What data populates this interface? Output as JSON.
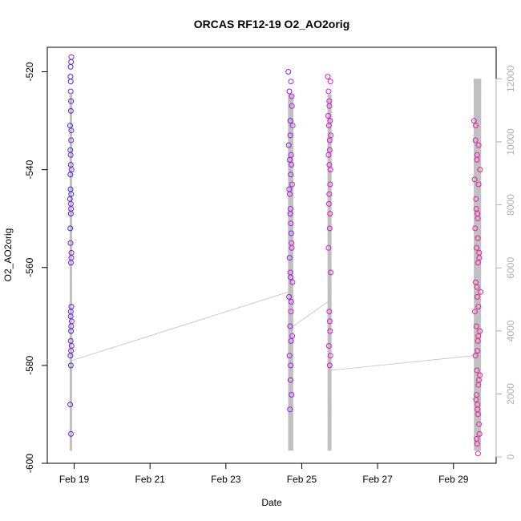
{
  "chart_data": {
    "type": "scatter",
    "title": "ORCAS RF12-19 O2_AO2orig",
    "xlabel": "Date",
    "ylabel": "O2_AO2orig",
    "ylim": [
      -600,
      -515
    ],
    "y_ticks": [
      "-520",
      "-540",
      "-560",
      "-580",
      "-600"
    ],
    "x_ticks": [
      "Feb 19",
      "Feb 21",
      "Feb 23",
      "Feb 25",
      "Feb 27",
      "Feb 29"
    ],
    "x_tick_dates": [
      "2016-02-19",
      "2016-02-21",
      "2016-02-23",
      "2016-02-25",
      "2016-02-27",
      "2016-02-29"
    ],
    "xlim": [
      "2016-02-18T07:00",
      "2016-03-01T03:00"
    ],
    "y2lim": [
      -200,
      13000
    ],
    "y2_ticks": [
      "0",
      "2000",
      "4000",
      "6000",
      "8000",
      "10000",
      "12000"
    ],
    "grid": false,
    "colors": {
      "series_start": "#3a1ff0",
      "series_mid": "#d414e6",
      "series_end": "#ee1f8f",
      "altitude_line": "#c0c0c0"
    },
    "series": [
      {
        "values_x": [
          "2016-02-18T21:20",
          "2016-02-18T21:50",
          "2016-02-18T22:10",
          "2016-02-18T22:30"
        ],
        "points_y": [
          -546,
          -541,
          -522,
          -531,
          -544,
          -549,
          -552,
          -570,
          -573,
          -578,
          -580,
          -588,
          -519,
          -526,
          -536,
          -539,
          -545,
          -555,
          -559,
          -568,
          -575,
          -518,
          -521,
          -528,
          -532,
          -537,
          -548,
          -557,
          -569,
          -572,
          -576,
          -594,
          -517,
          -524,
          -534,
          -540,
          -547,
          -558,
          -571,
          -577
        ]
      },
      {
        "values_x": [
          "2016-02-24T15:30",
          "2016-02-24T17:00",
          "2016-02-24T18:30"
        ],
        "points_y": [
          -520,
          -524,
          -530,
          -535,
          -538,
          -541,
          -544,
          -549,
          -553,
          -558,
          -562,
          -566,
          -572,
          -575,
          -578,
          -583,
          -586,
          -589,
          -522,
          -527,
          -533,
          -539,
          -545,
          -551,
          -556,
          -561,
          -567,
          -574,
          -580,
          -525,
          -531,
          -537,
          -543,
          -548,
          -555,
          -563,
          -569
        ]
      },
      {
        "values_x": [
          "2016-02-25T16:30",
          "2016-02-25T17:30",
          "2016-02-25T18:40"
        ],
        "points_y": [
          -521,
          -524,
          -527,
          -529,
          -531,
          -534,
          -537,
          -539,
          -543,
          -547,
          -552,
          -556,
          -569,
          -573,
          -576,
          -580,
          -522,
          -526,
          -530,
          -533,
          -536,
          -540,
          -545,
          -549,
          -561,
          -571,
          -578
        ]
      },
      {
        "values_x": [
          "2016-02-29T13:00",
          "2016-02-29T15:00",
          "2016-02-29T17:20"
        ],
        "points_y": [
          -530,
          -534,
          -538,
          -542,
          -546,
          -549,
          -552,
          -556,
          -559,
          -563,
          -566,
          -569,
          -572,
          -575,
          -578,
          -581,
          -584,
          -587,
          -589,
          -592,
          -595,
          -598,
          -531,
          -537,
          -543,
          -548,
          -554,
          -558,
          -564,
          -568,
          -573,
          -577,
          -583,
          -586,
          -590,
          -594,
          -596,
          -535,
          -540,
          -550,
          -557,
          -565,
          -574,
          -582,
          -588
        ]
      }
    ]
  }
}
